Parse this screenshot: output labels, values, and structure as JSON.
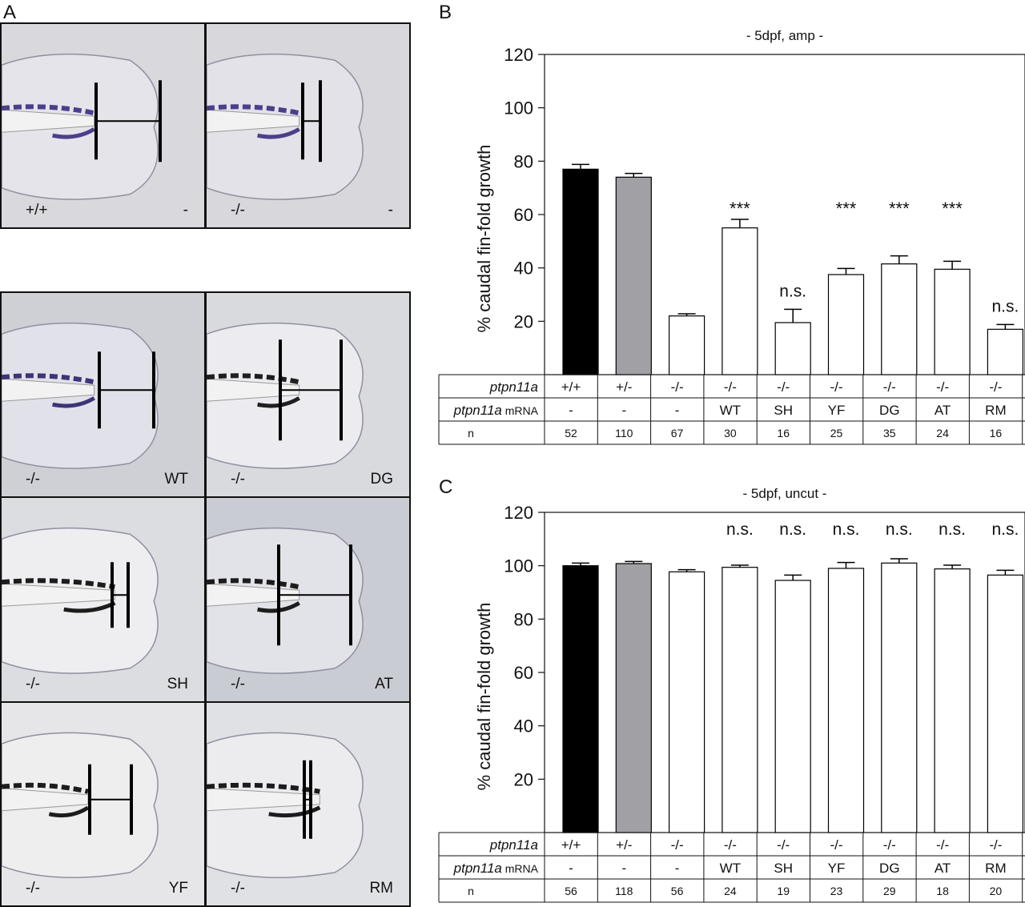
{
  "panels": {
    "a_letter": "A",
    "b_letter": "B",
    "c_letter": "C"
  },
  "panel_a": {
    "top_row": [
      {
        "genotype": "+/+",
        "treatment": "-",
        "bg": "#d9d9dd",
        "fin": "#e4e4ea",
        "pigment": "#4c3f8a",
        "proximal": 0.14,
        "distal": 0.31
      },
      {
        "genotype": "-/-",
        "treatment": "-",
        "bg": "#d7d7dc",
        "fin": "#e2e2e8",
        "pigment": "#4c3f8a",
        "proximal": 0.45,
        "distal": 0.53
      }
    ],
    "grid": [
      {
        "genotype": "-/-",
        "treatment": "WT",
        "bg": "#cfd0d6",
        "fin": "#e1e1e9",
        "pigment": "#3d3478"
      },
      {
        "genotype": "-/-",
        "treatment": "DG",
        "bg": "#d8dade",
        "fin": "#ececf0",
        "pigment": "#1f1f1f"
      },
      {
        "genotype": "-/-",
        "treatment": "SH",
        "bg": "#dcdde1",
        "fin": "#eeeef1",
        "pigment": "#1c1c1c"
      },
      {
        "genotype": "-/-",
        "treatment": "AT",
        "bg": "#c9ccd2",
        "fin": "#e2e3e8",
        "pigment": "#1c1c1c"
      },
      {
        "genotype": "-/-",
        "treatment": "YF",
        "bg": "#e6e6e8",
        "fin": "#eeeeef",
        "pigment": "#1c1c1c"
      },
      {
        "genotype": "-/-",
        "treatment": "RM",
        "bg": "#e0e1e4",
        "fin": "#ececef",
        "pigment": "#1c1c1c"
      }
    ]
  },
  "chart_data": [
    {
      "type": "bar",
      "title": "- 5dpf, amp -",
      "ylabel": "% caudal fin-fold growth",
      "ylim": [
        0,
        120
      ],
      "yticks": [
        20,
        40,
        60,
        80,
        100,
        120
      ],
      "categories": [
        "+/+",
        "+/-",
        "-/-",
        "WT",
        "SH",
        "YF",
        "DG",
        "AT",
        "RM"
      ],
      "values": [
        77,
        74,
        22,
        55,
        19.5,
        37.5,
        41.5,
        39.5,
        17
      ],
      "errors": [
        1.8,
        1.4,
        0.8,
        3.2,
        5,
        2.3,
        3,
        3,
        1.8
      ],
      "colors": [
        "#000000",
        "#a0a0a5",
        "#ffffff",
        "#ffffff",
        "#ffffff",
        "#ffffff",
        "#ffffff",
        "#ffffff",
        "#ffffff"
      ],
      "significance": [
        "",
        "",
        "",
        "***",
        "n.s.",
        "***",
        "***",
        "***",
        "n.s."
      ],
      "table": {
        "row1_label": "ptpn11a",
        "row2_label_italic": "ptpn11a",
        "row2_label_suffix": " mRNA",
        "row3_label": "n",
        "genotype": [
          "+/+",
          "+/-",
          "-/-",
          "-/-",
          "-/-",
          "-/-",
          "-/-",
          "-/-",
          "-/-"
        ],
        "mrna": [
          "-",
          "-",
          "-",
          "WT",
          "SH",
          "YF",
          "DG",
          "AT",
          "RM"
        ],
        "n": [
          "52",
          "110",
          "67",
          "30",
          "16",
          "25",
          "35",
          "24",
          "16"
        ]
      }
    },
    {
      "type": "bar",
      "title": "- 5dpf, uncut -",
      "ylabel": "% caudal fin-fold growth",
      "ylim": [
        0,
        120
      ],
      "yticks": [
        20,
        40,
        60,
        80,
        100,
        120
      ],
      "categories": [
        "+/+",
        "+/-",
        "-/-",
        "WT",
        "SH",
        "YF",
        "DG",
        "AT",
        "RM"
      ],
      "values": [
        100,
        100.8,
        97.7,
        99.4,
        94.5,
        99,
        101,
        98.8,
        96.5
      ],
      "errors": [
        1,
        0.8,
        0.8,
        0.8,
        2,
        2.2,
        1.6,
        1.4,
        1.8
      ],
      "colors": [
        "#000000",
        "#a0a0a5",
        "#ffffff",
        "#ffffff",
        "#ffffff",
        "#ffffff",
        "#ffffff",
        "#ffffff",
        "#ffffff"
      ],
      "significance": [
        "",
        "",
        "",
        "n.s.",
        "n.s.",
        "n.s.",
        "n.s.",
        "n.s.",
        "n.s."
      ],
      "table": {
        "row1_label": "ptpn11a",
        "row2_label_italic": "ptpn11a",
        "row2_label_suffix": " mRNA",
        "row3_label": "n",
        "genotype": [
          "+/+",
          "+/-",
          "-/-",
          "-/-",
          "-/-",
          "-/-",
          "-/-",
          "-/-",
          "-/-"
        ],
        "mrna": [
          "-",
          "-",
          "-",
          "WT",
          "SH",
          "YF",
          "DG",
          "AT",
          "RM"
        ],
        "n": [
          "56",
          "118",
          "56",
          "24",
          "19",
          "23",
          "29",
          "18",
          "20"
        ]
      }
    }
  ]
}
